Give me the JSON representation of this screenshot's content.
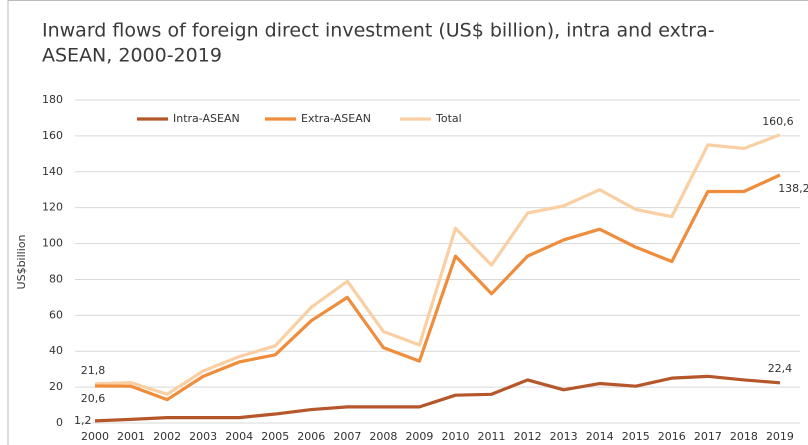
{
  "chart_data": {
    "type": "line",
    "title": [
      "Inward flows of foreign direct investment (US$ billion), intra and extra-",
      "ASEAN, 2000-2019"
    ],
    "y_label": "US$billion",
    "categories": [
      "2000",
      "2001",
      "2002",
      "2003",
      "2004",
      "2005",
      "2006",
      "2007",
      "2008",
      "2009",
      "2010",
      "2011",
      "2012",
      "2013",
      "2014",
      "2015",
      "2016",
      "2017",
      "2018",
      "2019"
    ],
    "series": [
      {
        "name": "Intra-ASEAN",
        "color": "#b5572a",
        "values": [
          1.2,
          2,
          3,
          3,
          3,
          5,
          7.5,
          9,
          9,
          9,
          15.5,
          16,
          24,
          18.5,
          22,
          20.5,
          25,
          26,
          24,
          22.4
        ],
        "value_labels": [
          "1,2",
          null,
          null,
          null,
          null,
          null,
          null,
          null,
          null,
          null,
          null,
          null,
          null,
          null,
          null,
          null,
          null,
          null,
          null,
          "22,4"
        ]
      },
      {
        "name": "Extra-ASEAN",
        "color": "#ef8d3c",
        "values": [
          20.6,
          20.5,
          13,
          26,
          34,
          38,
          57,
          70,
          42,
          34.5,
          93,
          72,
          93,
          102,
          108,
          98,
          90,
          129,
          129,
          138.2
        ],
        "value_labels": [
          "20,6",
          null,
          null,
          null,
          null,
          null,
          null,
          null,
          null,
          null,
          null,
          null,
          null,
          null,
          null,
          null,
          null,
          null,
          null,
          "138,2"
        ]
      },
      {
        "name": "Total",
        "color": "#f9cfa3",
        "values": [
          21.8,
          22.5,
          16,
          29,
          37,
          43,
          64.5,
          79,
          51,
          43.5,
          108.5,
          88,
          117,
          121,
          130,
          119,
          115,
          155,
          153,
          160.6
        ],
        "value_labels": [
          "21,8",
          null,
          null,
          null,
          null,
          null,
          null,
          null,
          null,
          null,
          null,
          null,
          null,
          null,
          null,
          null,
          null,
          null,
          null,
          "160,6"
        ]
      }
    ],
    "ylim": [
      0,
      180
    ],
    "yticks": [
      0,
      20,
      40,
      60,
      80,
      100,
      120,
      140,
      160,
      180
    ],
    "grid": true,
    "legend": "top"
  }
}
